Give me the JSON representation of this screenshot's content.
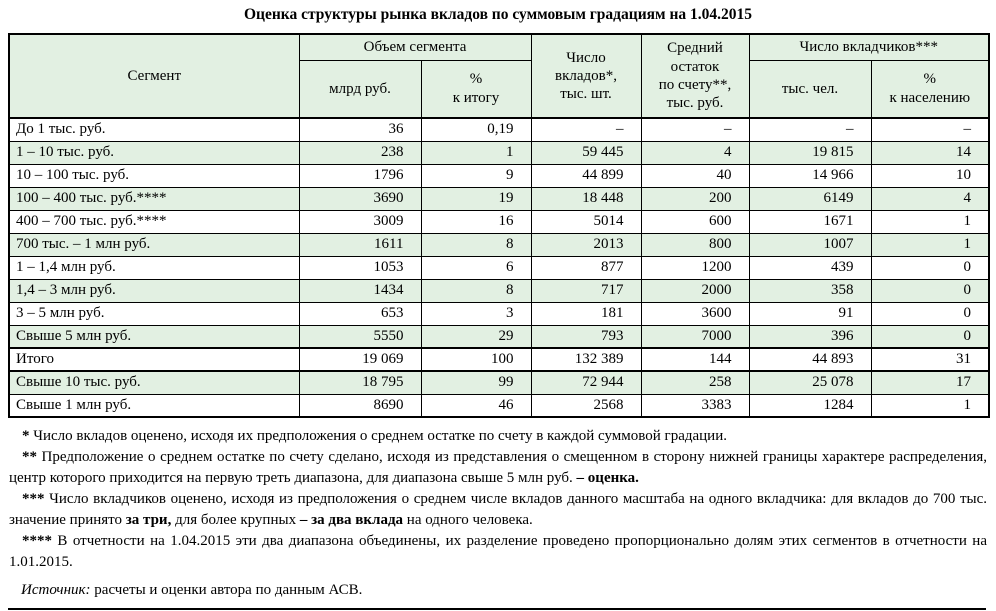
{
  "page": {
    "title": "Оценка структуры рынка вкладов по суммовым градациям на 1.04.2015"
  },
  "colors": {
    "stripe": "#e2f0e2",
    "border": "#000000",
    "background": "#ffffff"
  },
  "table": {
    "header": {
      "segment": "Сегмент",
      "volume_group": "Объем сегмента",
      "volume_bln": "млрд руб.",
      "volume_pct": "%\nк итогу",
      "deposits_count": "Число\nвкладов*,\nтыс. шт.",
      "avg_balance": "Средний\nостаток\nпо счету**,\nтыс. руб.",
      "depositors_group": "Число вкладчиков***",
      "depositors_unit": "тыс. чел.",
      "depositors_pct": "%\nк населению"
    },
    "rows": [
      {
        "cells": [
          "До 1 тыс. руб.",
          "36",
          "0,19",
          "–",
          "–",
          "–",
          "–"
        ],
        "stripe": false,
        "heavy_top": false
      },
      {
        "cells": [
          "1 – 10 тыс. руб.",
          "238",
          "1",
          "59 445",
          "4",
          "19 815",
          "14"
        ],
        "stripe": true,
        "heavy_top": false
      },
      {
        "cells": [
          "10 – 100 тыс. руб.",
          "1796",
          "9",
          "44 899",
          "40",
          "14 966",
          "10"
        ],
        "stripe": false,
        "heavy_top": false
      },
      {
        "cells": [
          "100 – 400 тыс. руб.****",
          "3690",
          "19",
          "18 448",
          "200",
          "6149",
          "4"
        ],
        "stripe": true,
        "heavy_top": false
      },
      {
        "cells": [
          "400 – 700 тыс. руб.****",
          "3009",
          "16",
          "5014",
          "600",
          "1671",
          "1"
        ],
        "stripe": false,
        "heavy_top": false
      },
      {
        "cells": [
          "700 тыс. – 1 млн руб.",
          "1611",
          "8",
          "2013",
          "800",
          "1007",
          "1"
        ],
        "stripe": true,
        "heavy_top": false
      },
      {
        "cells": [
          "1 – 1,4 млн руб.",
          "1053",
          "6",
          "877",
          "1200",
          "439",
          "0"
        ],
        "stripe": false,
        "heavy_top": false
      },
      {
        "cells": [
          "1,4 – 3 млн руб.",
          "1434",
          "8",
          "717",
          "2000",
          "358",
          "0"
        ],
        "stripe": true,
        "heavy_top": false
      },
      {
        "cells": [
          "3 – 5 млн руб.",
          "653",
          "3",
          "181",
          "3600",
          "91",
          "0"
        ],
        "stripe": false,
        "heavy_top": false
      },
      {
        "cells": [
          "Свыше 5 млн руб.",
          "5550",
          "29",
          "793",
          "7000",
          "396",
          "0"
        ],
        "stripe": true,
        "heavy_top": false
      },
      {
        "cells": [
          "Итого",
          "19 069",
          "100",
          "132 389",
          "144",
          "44 893",
          "31"
        ],
        "stripe": false,
        "heavy_top": true
      },
      {
        "cells": [
          "Свыше 10 тыс. руб.",
          "18 795",
          "99",
          "72 944",
          "258",
          "25 078",
          "17"
        ],
        "stripe": true,
        "heavy_top": true
      },
      {
        "cells": [
          "Свыше 1 млн руб.",
          "8690",
          "46",
          "2568",
          "3383",
          "1284",
          "1"
        ],
        "stripe": false,
        "heavy_top": false
      }
    ]
  },
  "footnotes": [
    {
      "marker": "*",
      "segments": [
        {
          "t": " Число вкладов оценено, исходя их предположения о среднем остатке по счету в каждой суммовой градации.",
          "b": false
        }
      ]
    },
    {
      "marker": "**",
      "segments": [
        {
          "t": " Предположение о среднем остатке по счету сделано, исходя из представления о смещенном в сторону нижней границы характере распределения, центр которого приходится на первую треть диапазона, для диапазона свыше 5 млн руб. ",
          "b": false
        },
        {
          "t": "– оценка.",
          "b": true
        }
      ]
    },
    {
      "marker": "***",
      "segments": [
        {
          "t": " Число вкладчиков оценено, исходя из предположения о среднем числе вкладов данного масштаба на одного вкладчика: для вкладов до 700 тыс. значение принято ",
          "b": false
        },
        {
          "t": "за три,",
          "b": true
        },
        {
          "t": " для более крупных ",
          "b": false
        },
        {
          "t": "– за два вклада",
          "b": true
        },
        {
          "t": " на одного человека.",
          "b": false
        }
      ]
    },
    {
      "marker": "****",
      "segments": [
        {
          "t": " В отчетности на 1.04.2015 эти два диапазона объединены, их разделение проведено пропорционально долям этих сегментов в отчетности на 1.01.2015.",
          "b": false
        }
      ]
    }
  ],
  "source": {
    "label": "Источник:",
    "text": " расчеты и оценки автора по данным АСВ."
  }
}
